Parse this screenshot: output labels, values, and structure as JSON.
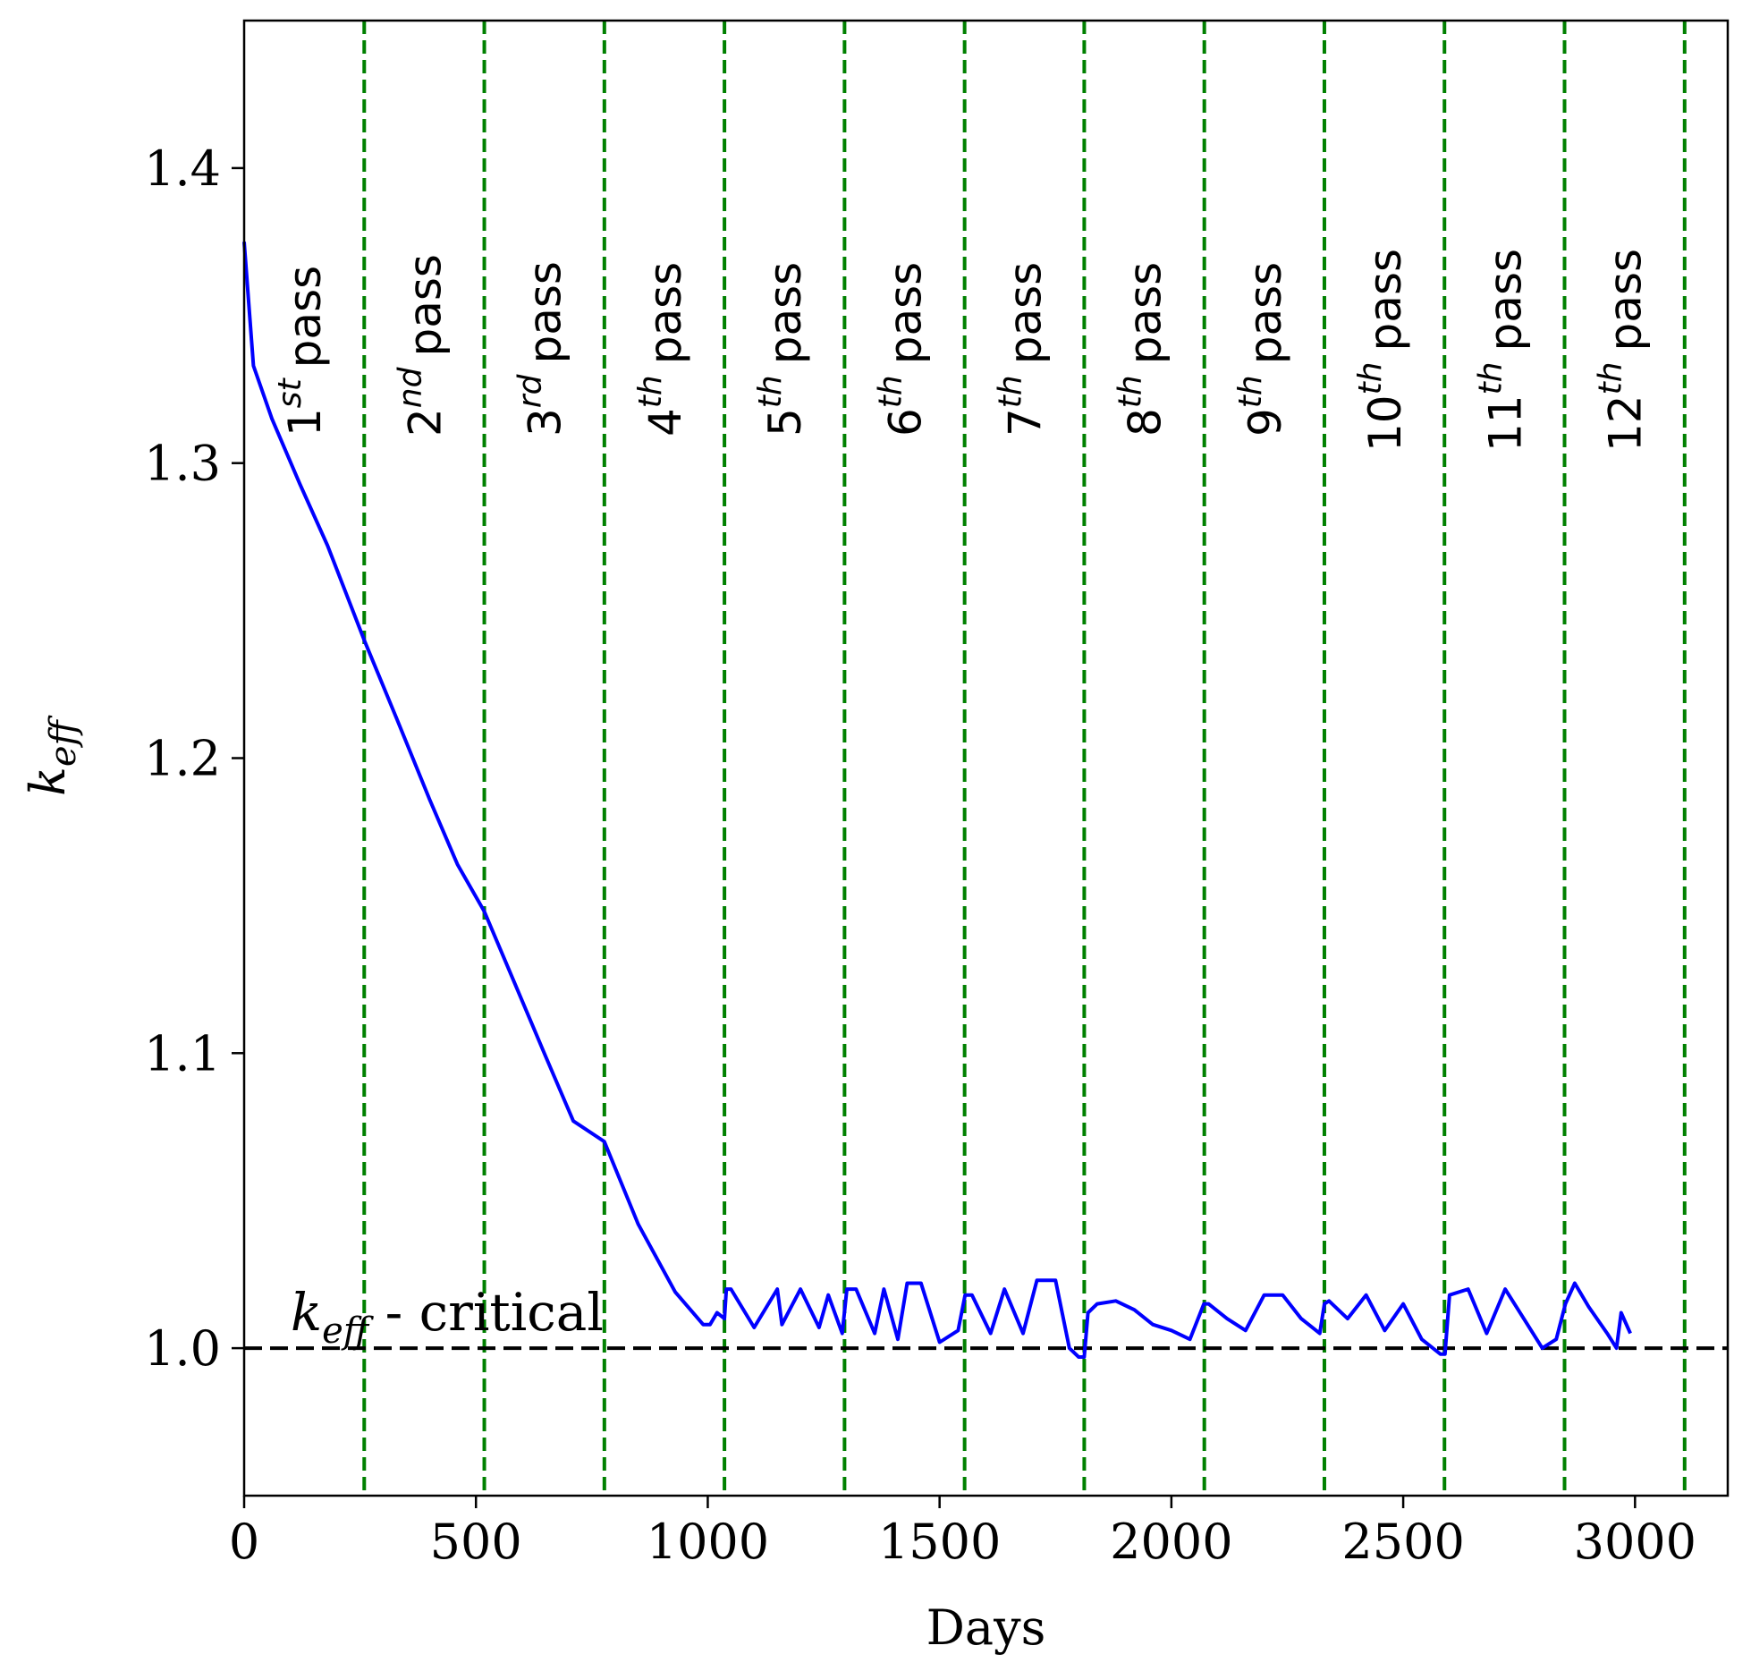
{
  "chart_data": {
    "type": "line",
    "title": "",
    "xlabel": "Days",
    "ylabel": {
      "base": "k",
      "subscript": "eff"
    },
    "xlim": [
      0,
      3200
    ],
    "ylim": [
      0.95,
      1.45
    ],
    "xticks": [
      0,
      500,
      1000,
      1500,
      2000,
      2500,
      3000
    ],
    "xtick_labels": [
      "0",
      "500",
      "1000",
      "1500",
      "2000",
      "2500",
      "3000"
    ],
    "yticks": [
      1.0,
      1.1,
      1.2,
      1.3,
      1.4
    ],
    "ytick_labels": [
      "1.0",
      "1.1",
      "1.2",
      "1.3",
      "1.4"
    ],
    "grid": false,
    "series": [
      {
        "color": "#0000ff",
        "x": [
          0,
          20,
          60,
          120,
          180,
          259,
          330,
          400,
          460,
          518,
          580,
          650,
          710,
          777,
          850,
          930,
          990,
          1005,
          1020,
          1036,
          1040,
          1050,
          1100,
          1150,
          1160,
          1200,
          1240,
          1260,
          1290,
          1300,
          1320,
          1360,
          1380,
          1410,
          1430,
          1460,
          1500,
          1540,
          1555,
          1570,
          1610,
          1640,
          1680,
          1710,
          1750,
          1780,
          1800,
          1812,
          1820,
          1840,
          1880,
          1920,
          1960,
          2000,
          2040,
          2070,
          2080,
          2120,
          2160,
          2200,
          2240,
          2280,
          2320,
          2330,
          2340,
          2380,
          2420,
          2460,
          2500,
          2540,
          2580,
          2590,
          2600,
          2640,
          2680,
          2720,
          2760,
          2800,
          2830,
          2850,
          2870,
          2900,
          2940,
          2960,
          2970,
          2990
        ],
        "y": [
          1.375,
          1.333,
          1.315,
          1.293,
          1.272,
          1.24,
          1.213,
          1.186,
          1.164,
          1.148,
          1.125,
          1.099,
          1.077,
          1.07,
          1.042,
          1.019,
          1.008,
          1.008,
          1.012,
          1.01,
          1.02,
          1.02,
          1.007,
          1.02,
          1.008,
          1.02,
          1.007,
          1.018,
          1.005,
          1.02,
          1.02,
          1.005,
          1.02,
          1.003,
          1.022,
          1.022,
          1.002,
          1.006,
          1.018,
          1.018,
          1.005,
          1.02,
          1.005,
          1.023,
          1.023,
          1.0,
          0.997,
          0.997,
          1.012,
          1.015,
          1.016,
          1.013,
          1.008,
          1.006,
          1.003,
          1.015,
          1.015,
          1.01,
          1.006,
          1.018,
          1.018,
          1.01,
          1.005,
          1.015,
          1.016,
          1.01,
          1.018,
          1.006,
          1.015,
          1.003,
          0.998,
          0.998,
          1.018,
          1.02,
          1.005,
          1.02,
          1.01,
          1.0,
          1.003,
          1.015,
          1.022,
          1.014,
          1.005,
          1.0,
          1.012,
          1.005
        ]
      }
    ],
    "reference_line": {
      "y": 1.0,
      "color": "#000000",
      "style": "dashed"
    },
    "pass_lines": {
      "color": "#008000",
      "style": "dashed",
      "x": [
        259,
        518,
        777,
        1036,
        1295,
        1554,
        1812,
        2071,
        2330,
        2589,
        2848,
        3107
      ]
    },
    "pass_annotations": [
      {
        "num": "1",
        "sup": "st",
        "word": "pass"
      },
      {
        "num": "2",
        "sup": "nd",
        "word": "pass"
      },
      {
        "num": "3",
        "sup": "rd",
        "word": "pass"
      },
      {
        "num": "4",
        "sup": "th",
        "word": "pass"
      },
      {
        "num": "5",
        "sup": "th",
        "word": "pass"
      },
      {
        "num": "6",
        "sup": "th",
        "word": "pass"
      },
      {
        "num": "7",
        "sup": "th",
        "word": "pass"
      },
      {
        "num": "8",
        "sup": "th",
        "word": "pass"
      },
      {
        "num": "9",
        "sup": "th",
        "word": "pass"
      },
      {
        "num": "10",
        "sup": "th",
        "word": "pass"
      },
      {
        "num": "11",
        "sup": "th",
        "word": "pass"
      },
      {
        "num": "12",
        "sup": "th",
        "word": "pass"
      }
    ],
    "critical_annotation": {
      "base": "k",
      "subscript": "eff",
      "text": " - critical"
    }
  }
}
